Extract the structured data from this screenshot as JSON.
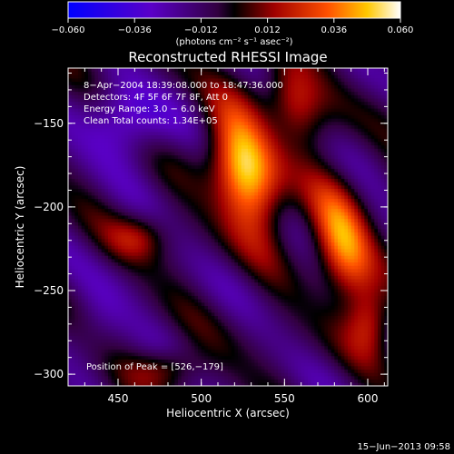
{
  "chart_data": {
    "type": "heatmap",
    "title": "Reconstructed RHESSI Image",
    "xlabel": "Heliocentric X (arcsec)",
    "ylabel": "Heliocentric Y (arcsec)",
    "xlim": [
      420,
      612
    ],
    "ylim": [
      -307,
      -117
    ],
    "x_ticks": [
      450,
      500,
      550,
      600
    ],
    "y_ticks": [
      -150,
      -200,
      -250,
      -300
    ],
    "x_tick_labels": [
      "450",
      "500",
      "550",
      "600"
    ],
    "y_tick_labels": [
      "−150",
      "−200",
      "−250",
      "−300"
    ],
    "colorbar": {
      "min": -0.06,
      "max": 0.06,
      "ticks": [
        -0.06,
        -0.036,
        -0.012,
        0.012,
        0.036,
        0.06
      ],
      "tick_labels": [
        "−0.060",
        "−0.036",
        "−0.012",
        "0.012",
        "0.036",
        "0.060"
      ],
      "units": "(photons cm⁻² s⁻¹ asec⁻²)",
      "colormap": "blue-purple-red-yellow-white"
    },
    "annotations": [
      "8−Apr−2004 18:39:08.000 to 18:47:36.000",
      "Detectors: 4F 5F 6F 7F 8F, Att 0",
      "Energy Range: 3.0 − 6.0 keV",
      "Clean     Total counts: 1.34E+05"
    ],
    "peak_label": "Position of Peak = [526,−179]",
    "peak": [
      526,
      -179
    ],
    "grid": false
  },
  "footer_timestamp": "15−Jun−2013 09:58"
}
